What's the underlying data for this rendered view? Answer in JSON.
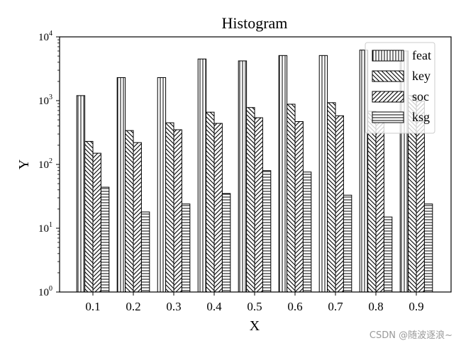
{
  "watermark": "CSDN @随波逐浪~",
  "chart_data": {
    "type": "bar",
    "title": "Histogram",
    "xlabel": "X",
    "ylabel": "Y",
    "yscale": "log",
    "ylim": [
      1,
      10000
    ],
    "yticks": [
      1,
      10,
      100,
      1000,
      10000
    ],
    "ytick_labels": [
      [
        "10",
        "0"
      ],
      [
        "10",
        "1"
      ],
      [
        "10",
        "2"
      ],
      [
        "10",
        "3"
      ],
      [
        "10",
        "4"
      ]
    ],
    "categories": [
      "0.1",
      "0.2",
      "0.3",
      "0.4",
      "0.5",
      "0.6",
      "0.7",
      "0.8",
      "0.9"
    ],
    "legend_position": "top-right",
    "grid": false,
    "series": [
      {
        "name": "feat",
        "hatch": "vertical",
        "values": [
          1200,
          2300,
          2300,
          4500,
          4200,
          5100,
          5100,
          6200,
          6000
        ]
      },
      {
        "name": "key",
        "hatch": "backslash",
        "values": [
          230,
          340,
          450,
          660,
          780,
          880,
          930,
          680,
          1200
        ]
      },
      {
        "name": "soc",
        "hatch": "slash",
        "values": [
          150,
          220,
          350,
          440,
          540,
          470,
          580,
          560,
          980
        ]
      },
      {
        "name": "ksg",
        "hatch": "horizontal",
        "values": [
          44,
          18,
          24,
          35,
          80,
          76,
          33,
          15,
          24
        ]
      }
    ]
  }
}
